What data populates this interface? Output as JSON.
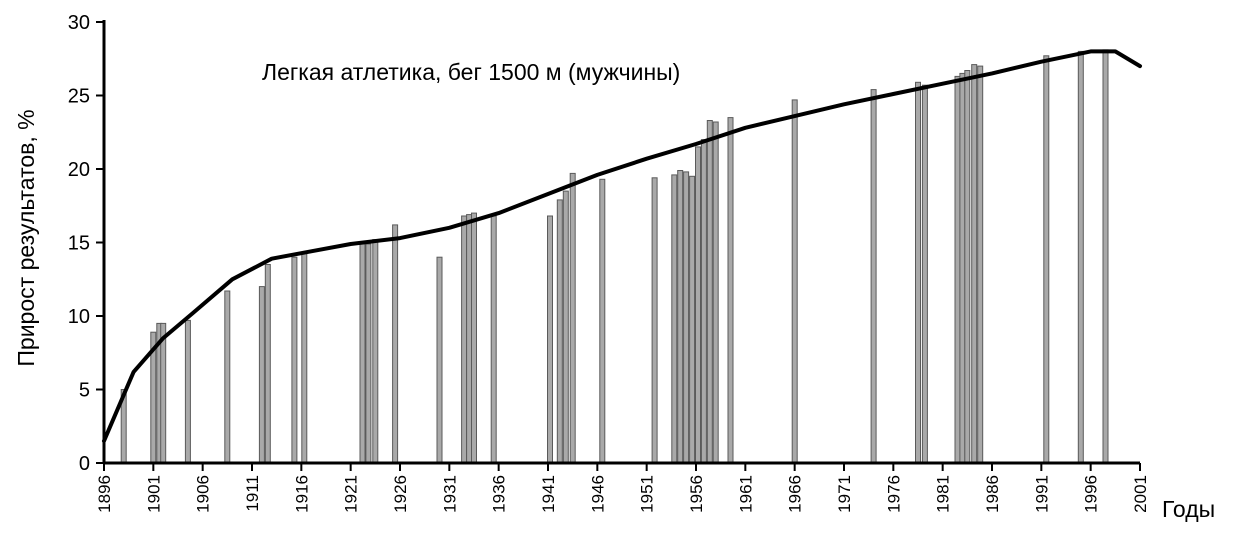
{
  "chart_data": {
    "type": "bar",
    "title": "Легкая атлетика, бег 1500 м  (мужчины)",
    "xlabel": "Годы",
    "ylabel": "Прирост результатов, %",
    "xlim": [
      1896,
      2001
    ],
    "ylim": [
      0,
      30
    ],
    "x_ticks": [
      1896,
      1901,
      1906,
      1911,
      1916,
      1921,
      1926,
      1931,
      1936,
      1941,
      1946,
      1951,
      1956,
      1961,
      1966,
      1971,
      1976,
      1981,
      1986,
      1991,
      1996,
      2001
    ],
    "y_ticks": [
      0,
      5,
      10,
      15,
      20,
      25,
      30
    ],
    "grid": false,
    "series": [
      {
        "type": "bar",
        "x": [
          1898,
          1901,
          1901.6,
          1902,
          1904.5,
          1908.5,
          1912,
          1912.6,
          1915.3,
          1916.3,
          1922.2,
          1922.8,
          1923.5,
          1925.5,
          1930,
          1932.5,
          1933,
          1933.5,
          1935.5,
          1941.2,
          1942.2,
          1942.8,
          1943.5,
          1946.5,
          1951.8,
          1953.8,
          1954.4,
          1955,
          1955.6,
          1956.2,
          1956.8,
          1957.4,
          1958,
          1959.5,
          1966,
          1974,
          1978.5,
          1979.2,
          1982.5,
          1983,
          1983.5,
          1984.2,
          1984.8,
          1991.5,
          1995,
          1997.5
        ],
        "values": [
          5.0,
          8.9,
          9.5,
          9.5,
          9.7,
          11.7,
          12.0,
          13.5,
          14.0,
          14.3,
          14.9,
          14.9,
          15.2,
          16.2,
          14.0,
          16.8,
          16.9,
          17.0,
          16.8,
          16.8,
          17.9,
          18.5,
          19.7,
          19.3,
          19.4,
          19.6,
          19.9,
          19.8,
          19.5,
          21.5,
          22.0,
          23.3,
          23.2,
          23.5,
          24.7,
          25.4,
          25.9,
          25.7,
          26.3,
          26.5,
          26.7,
          27.1,
          27.0,
          27.7,
          28.0,
          28.1
        ]
      },
      {
        "type": "line",
        "x": [
          1896,
          1899,
          1902,
          1905,
          1909,
          1913,
          1917,
          1921,
          1926,
          1931,
          1936,
          1941,
          1946,
          1951,
          1956,
          1961,
          1966,
          1971,
          1976,
          1981,
          1986,
          1991,
          1996,
          1998.5,
          2001
        ],
        "values": [
          1.5,
          6.2,
          8.5,
          10.2,
          12.5,
          13.9,
          14.4,
          14.9,
          15.3,
          16.0,
          17.0,
          18.3,
          19.6,
          20.7,
          21.7,
          22.8,
          23.6,
          24.4,
          25.1,
          25.8,
          26.5,
          27.3,
          28.0,
          28.0,
          27.0
        ]
      }
    ]
  }
}
